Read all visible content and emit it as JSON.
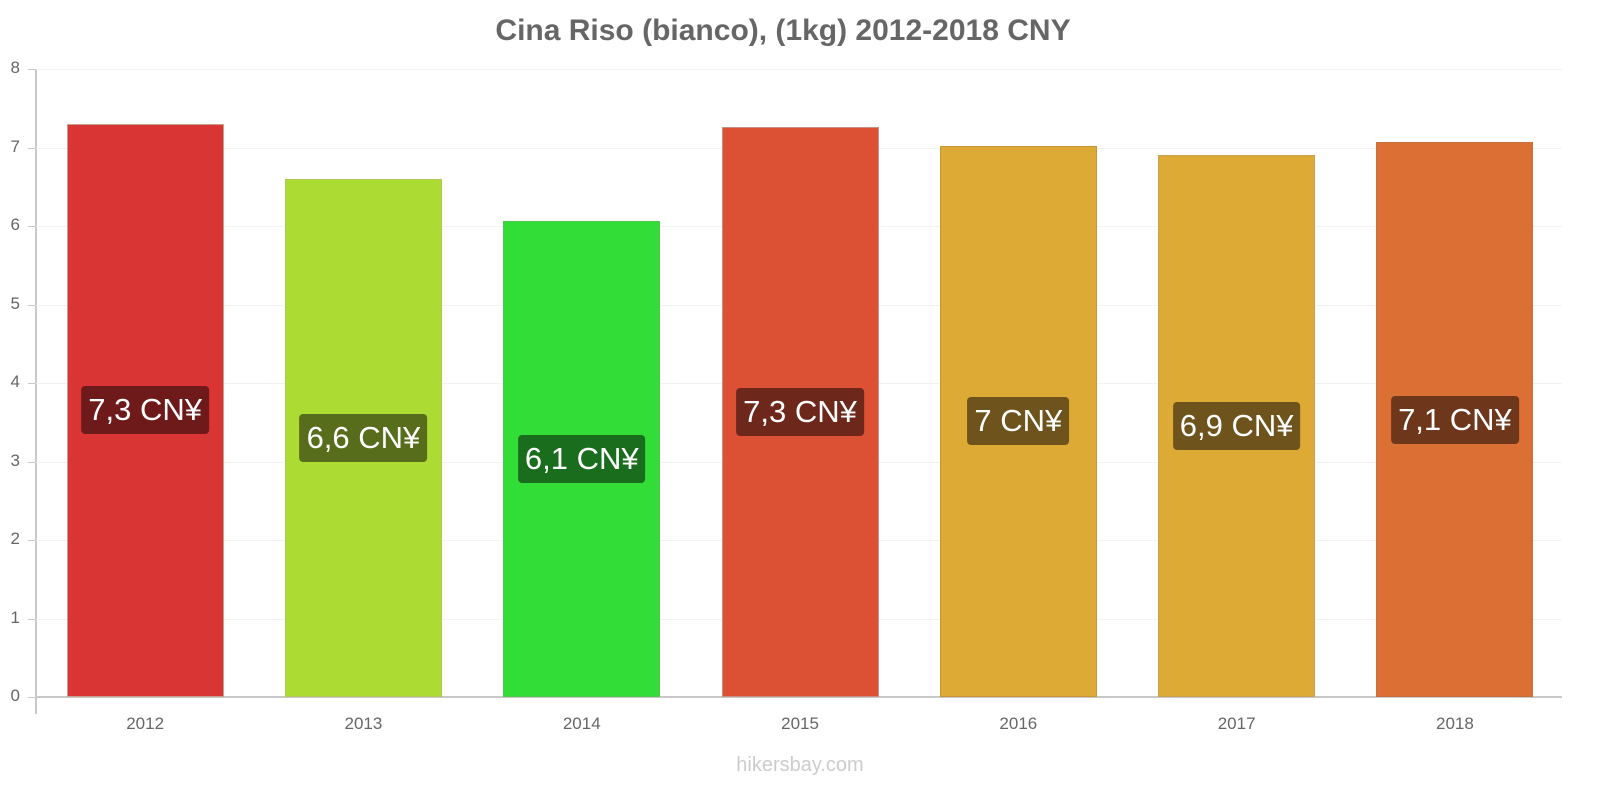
{
  "title": "Cina Riso (bianco), (1kg) 2012-2018 CNY",
  "watermark": "hikersbay.com",
  "chart_data": {
    "type": "bar",
    "title": "Cina Riso (bianco), (1kg) 2012-2018 CNY",
    "xlabel": "",
    "ylabel": "",
    "categories": [
      "2012",
      "2013",
      "2014",
      "2015",
      "2016",
      "2017",
      "2018"
    ],
    "values": [
      7.3,
      6.6,
      6.07,
      7.26,
      7.02,
      6.9,
      7.07
    ],
    "value_labels": [
      "7,3 CN¥",
      "6,6 CN¥",
      "6,1 CN¥",
      "7,3 CN¥",
      "7 CN¥",
      "6,9 CN¥",
      "7,1 CN¥"
    ],
    "ylim": [
      0,
      8
    ],
    "yticks": [
      "0",
      "1",
      "2",
      "3",
      "4",
      "5",
      "6",
      "7",
      "8"
    ],
    "grid": true,
    "legend": "none",
    "colors": {
      "bars": [
        "#da3535",
        "#acdc34",
        "#33dd38",
        "#dc5034",
        "#dcaa35",
        "#dcaa35",
        "#dc6f34"
      ],
      "bar_borders": [
        "#c8a08c",
        "#b4c85a",
        "#50c850",
        "#c89082",
        "#c89632",
        "#c8a050",
        "#c8703c"
      ],
      "label_backgrounds": [
        "#6e1a1a",
        "#586d1c",
        "#1b6d1e",
        "#6e271b",
        "#6e541c",
        "#6e541c",
        "#6e371b"
      ]
    }
  },
  "labels": {
    "bars": [
      {
        "year": "2012",
        "value": "7,3 CN¥"
      },
      {
        "year": "2013",
        "value": "6,6 CN¥"
      },
      {
        "year": "2014",
        "value": "6,1 CN¥"
      },
      {
        "year": "2015",
        "value": "7,3 CN¥"
      },
      {
        "year": "2016",
        "value": "7 CN¥"
      },
      {
        "year": "2017",
        "value": "6,9 CN¥"
      },
      {
        "year": "2018",
        "value": "7,1 CN¥"
      }
    ],
    "yticks": [
      "0",
      "1",
      "2",
      "3",
      "4",
      "5",
      "6",
      "7",
      "8"
    ]
  }
}
